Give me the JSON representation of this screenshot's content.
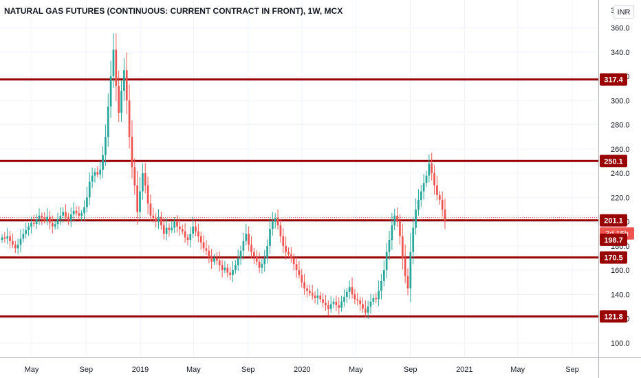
{
  "chart_data": {
    "type": "candlestick",
    "title": "NATURAL GAS FUTURES (CONTINUOUS: CURRENT CONTRACT IN FRONT), 1W, MCX",
    "currency": "INR",
    "top_tick_partial": "3",
    "yaxis": {
      "ticks": [
        100,
        120,
        140,
        160,
        180,
        200,
        220,
        240,
        260,
        280,
        300,
        320,
        340,
        360
      ],
      "ylim": [
        88,
        383
      ]
    },
    "xaxis": {
      "ticks": [
        {
          "label": "May",
          "date": "2018-05-01"
        },
        {
          "label": "Sep",
          "date": "2018-09-01"
        },
        {
          "label": "2019",
          "date": "2019-01-01"
        },
        {
          "label": "May",
          "date": "2019-05-01"
        },
        {
          "label": "Sep",
          "date": "2019-09-01"
        },
        {
          "label": "2020",
          "date": "2020-01-01"
        },
        {
          "label": "May",
          "date": "2020-05-01"
        },
        {
          "label": "Sep",
          "date": "2020-09-01"
        },
        {
          "label": "2021",
          "date": "2021-01-01"
        },
        {
          "label": "May",
          "date": "2021-05-01"
        },
        {
          "label": "Sep",
          "date": "2021-09-01"
        }
      ]
    },
    "hlines": [
      {
        "value": 317.4,
        "label": "317.4"
      },
      {
        "value": 250.1,
        "label": "250.1"
      },
      {
        "value": 201.1,
        "label": "201.1"
      },
      {
        "value": 170.5,
        "label": "170.5"
      },
      {
        "value": 121.8,
        "label": "121.8"
      }
    ],
    "last_price": {
      "value": 201.1,
      "label": "201.1",
      "countdown": "3d 15h"
    },
    "extra_label": {
      "value": 198.7,
      "label": "198.7"
    },
    "up_color": "#26a69a",
    "down_color": "#ef5350",
    "line_color": "#990000",
    "series_close": [
      187,
      186,
      188,
      184,
      181,
      178,
      181,
      186,
      190,
      193,
      196,
      199,
      198,
      202,
      205,
      203,
      201,
      204,
      199,
      196,
      198,
      202,
      205,
      208,
      204,
      201,
      206,
      209,
      207,
      205,
      207,
      212,
      220,
      233,
      238,
      241,
      239,
      243,
      255,
      270,
      295,
      320,
      342,
      312,
      290,
      308,
      325,
      300,
      270,
      245,
      230,
      208,
      225,
      240,
      230,
      215,
      205,
      203,
      200,
      204,
      197,
      190,
      195,
      193,
      195,
      200,
      196,
      194,
      192,
      187,
      185,
      190,
      196,
      192,
      188,
      183,
      178,
      176,
      171,
      167,
      170,
      168,
      164,
      160,
      162,
      158,
      156,
      160,
      164,
      170,
      176,
      184,
      190,
      181,
      175,
      171,
      167,
      162,
      165,
      170,
      180,
      194,
      200,
      203,
      197,
      188,
      180,
      175,
      173,
      170,
      165,
      160,
      156,
      150,
      145,
      143,
      141,
      139,
      137,
      139,
      136,
      133,
      131,
      128,
      132,
      134,
      131,
      129,
      134,
      138,
      142,
      146,
      140,
      136,
      135,
      132,
      128,
      125,
      130,
      134,
      137,
      136,
      143,
      151,
      160,
      175,
      185,
      197,
      205,
      200,
      188,
      170,
      155,
      145,
      175,
      195,
      210,
      218,
      225,
      232,
      238,
      248,
      240,
      230,
      222,
      218,
      210,
      201.1
    ]
  }
}
